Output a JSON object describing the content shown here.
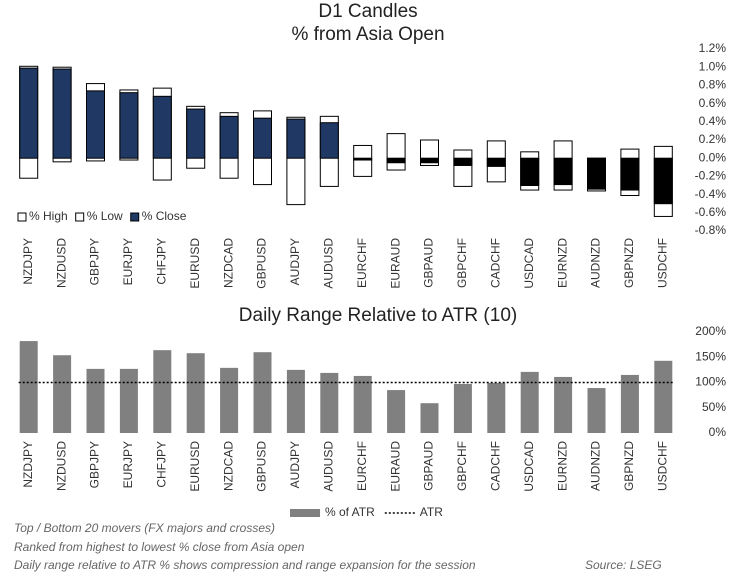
{
  "chart_data": [
    {
      "type": "candle",
      "title": "D1 Candles",
      "subtitle": "% from Asia Open",
      "categories": [
        "NZDJPY",
        "NZDUSD",
        "GBPJPY",
        "EURJPY",
        "CHFJPY",
        "EURUSD",
        "NZDCAD",
        "GBPUSD",
        "AUDJPY",
        "AUDUSD",
        "EURCHF",
        "EURAUD",
        "GBPAUD",
        "GBPCHF",
        "CADCHF",
        "USDCAD",
        "EURNZD",
        "AUDNZD",
        "GBPNZD",
        "USDCHF"
      ],
      "series": [
        {
          "name": "% High",
          "color": "#ffffff",
          "values": [
            1.01,
            1.0,
            0.82,
            0.75,
            0.77,
            0.57,
            0.5,
            0.52,
            0.45,
            0.46,
            0.14,
            0.27,
            0.2,
            0.09,
            0.19,
            0.07,
            0.19,
            0.0,
            0.1,
            0.13
          ]
        },
        {
          "name": "% Low",
          "color": "#ffffff",
          "values": [
            -0.22,
            -0.04,
            -0.03,
            -0.02,
            -0.24,
            -0.11,
            -0.22,
            -0.29,
            -0.51,
            -0.31,
            -0.2,
            -0.13,
            -0.08,
            -0.31,
            -0.26,
            -0.35,
            -0.35,
            -0.36,
            -0.41,
            -0.64
          ]
        },
        {
          "name": "% Close",
          "color": "#1f3864",
          "values": [
            0.99,
            0.98,
            0.74,
            0.72,
            0.68,
            0.54,
            0.46,
            0.44,
            0.43,
            0.39,
            -0.02,
            -0.05,
            -0.05,
            -0.08,
            -0.09,
            -0.3,
            -0.29,
            -0.34,
            -0.35,
            -0.5
          ]
        }
      ],
      "negative_close_color": "#000000",
      "ylim": [
        -0.8,
        1.2
      ],
      "yticks": [
        {
          "value": -0.8,
          "label": "-0.8%"
        },
        {
          "value": -0.6,
          "label": "-0.6%"
        },
        {
          "value": -0.4,
          "label": "-0.4%"
        },
        {
          "value": -0.2,
          "label": "-0.2%"
        },
        {
          "value": 0,
          "label": "0.0%"
        },
        {
          "value": 0.2,
          "label": "0.2%"
        },
        {
          "value": 0.4,
          "label": "0.4%"
        },
        {
          "value": 0.6,
          "label": "0.6%"
        },
        {
          "value": 0.8,
          "label": "0.8%"
        },
        {
          "value": 1.0,
          "label": "1.0%"
        },
        {
          "value": 1.2,
          "label": "1.2%"
        }
      ],
      "legend": "bottom-left"
    },
    {
      "type": "bar",
      "title": "Daily Range Relative to ATR (10)",
      "categories": [
        "NZDJPY",
        "NZDUSD",
        "GBPJPY",
        "EURJPY",
        "CHFJPY",
        "EURUSD",
        "NZDCAD",
        "GBPUSD",
        "AUDJPY",
        "AUDUSD",
        "EURCHF",
        "EURAUD",
        "GBPAUD",
        "GBPCHF",
        "CADCHF",
        "USDCAD",
        "EURNZD",
        "AUDNZD",
        "GBPNZD",
        "USDCHF"
      ],
      "series": [
        {
          "name": "% of ATR",
          "color": "#808080",
          "values": [
            182,
            154,
            127,
            127,
            164,
            158,
            129,
            160,
            125,
            119,
            113,
            85,
            59,
            97,
            99,
            121,
            111,
            89,
            115,
            143
          ]
        }
      ],
      "reference_line": {
        "name": "ATR",
        "value": 100,
        "color": "#000000"
      },
      "ylim": [
        0,
        200
      ],
      "yticks": [
        {
          "value": 0,
          "label": "0%"
        },
        {
          "value": 50,
          "label": "50%"
        },
        {
          "value": 100,
          "label": "100%"
        },
        {
          "value": 150,
          "label": "150%"
        },
        {
          "value": 200,
          "label": "200%"
        }
      ],
      "legend": "bottom"
    }
  ],
  "footer": {
    "notes": [
      "Top / Bottom 20 movers (FX majors and crosses)",
      "Ranked from highest to lowest % close from Asia open",
      "Daily range relative to ATR % shows compression and range expansion for the session"
    ],
    "source": "Source: LSEG"
  }
}
